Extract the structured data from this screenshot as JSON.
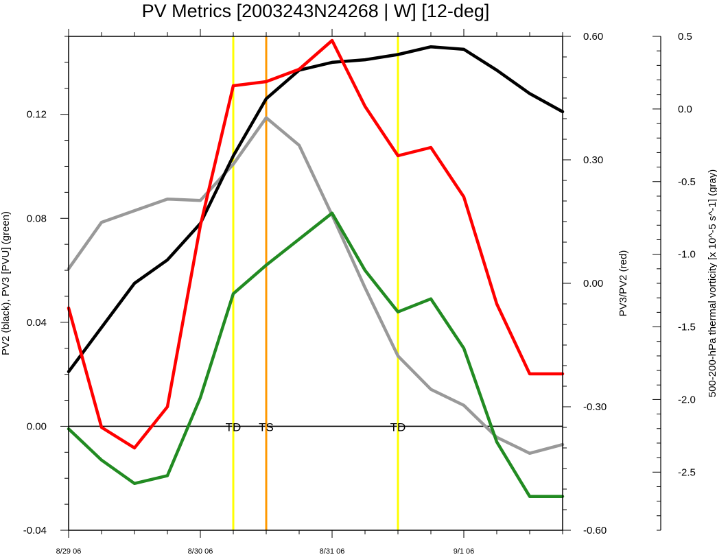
{
  "chart_data": {
    "type": "line",
    "title": "PV Metrics [2003243N24268 | W] [12-deg]",
    "x": [
      0,
      0.25,
      0.5,
      0.75,
      1.0,
      1.25,
      1.5,
      1.75,
      2.0,
      2.25,
      2.5,
      2.75,
      3.0,
      3.25,
      3.5,
      3.75
    ],
    "xlim": [
      0,
      3.75
    ],
    "x_ticks": [
      {
        "value": 0,
        "label": "8/29 06"
      },
      {
        "value": 1,
        "label": "8/30 06"
      },
      {
        "value": 2,
        "label": "8/31 06"
      },
      {
        "value": 3,
        "label": "9/1 06"
      }
    ],
    "axes": {
      "left": {
        "label": "PV2 (black), PV3 [PVU] (green)",
        "ylim": [
          -0.04,
          0.15
        ],
        "ticks": [
          -0.04,
          0.0,
          0.04,
          0.08,
          0.12
        ],
        "tick_labels": [
          "-0.04",
          "0.00",
          "0.04",
          "0.08",
          "0.12"
        ]
      },
      "right": {
        "label": "PV3/PV2 (red)",
        "ylim": [
          -0.6,
          0.6
        ],
        "ticks": [
          -0.6,
          -0.3,
          0.0,
          0.3,
          0.6
        ],
        "tick_labels": [
          "-0.60",
          "-0.30",
          "0.00",
          "0.30",
          "0.60"
        ]
      },
      "far_right": {
        "label": "500-200-hPa thermal vorticity [x 10^-5 s^-1] (gray)",
        "ylim": [
          -2.9,
          0.5
        ],
        "ticks": [
          0.5,
          0.0,
          -0.5,
          -1.0,
          -1.5,
          -2.0,
          -2.5
        ],
        "tick_labels": [
          "0.5",
          "0.0",
          "-0.5",
          "-1.0",
          "-1.5",
          "-2.0",
          "-2.5"
        ]
      }
    },
    "series": [
      {
        "axis": "left",
        "color": "#000000",
        "values": [
          0.021,
          0.038,
          0.055,
          0.064,
          0.078,
          0.104,
          0.126,
          0.137,
          0.14,
          0.141,
          0.143,
          0.146,
          0.145,
          0.137,
          0.128,
          0.121
        ]
      },
      {
        "axis": "left",
        "color": "#228b22",
        "values": [
          -0.001,
          -0.013,
          -0.022,
          -0.019,
          0.011,
          0.051,
          0.062,
          0.072,
          0.082,
          0.06,
          0.044,
          0.049,
          0.03,
          -0.006,
          -0.027,
          -0.027
        ]
      },
      {
        "axis": "right",
        "color": "#ff0000",
        "values": [
          -0.06,
          -0.35,
          -0.4,
          -0.3,
          0.14,
          0.48,
          0.49,
          0.52,
          0.59,
          0.43,
          0.31,
          0.33,
          0.21,
          -0.05,
          -0.22,
          -0.22
        ]
      },
      {
        "axis": "far_right",
        "color": "#999999",
        "values": [
          -1.1,
          -0.78,
          -0.7,
          -0.62,
          -0.63,
          -0.38,
          -0.06,
          -0.25,
          -0.73,
          -1.23,
          -1.7,
          -1.93,
          -2.04,
          -2.26,
          -2.37,
          -2.31
        ]
      }
    ],
    "zero_line": 0.0,
    "events": [
      {
        "x": 1.25,
        "label": "TD",
        "color": "#ffff00"
      },
      {
        "x": 1.5,
        "label": "TS",
        "color": "#ff9900"
      },
      {
        "x": 2.5,
        "label": "TD",
        "color": "#ffff00"
      }
    ]
  }
}
